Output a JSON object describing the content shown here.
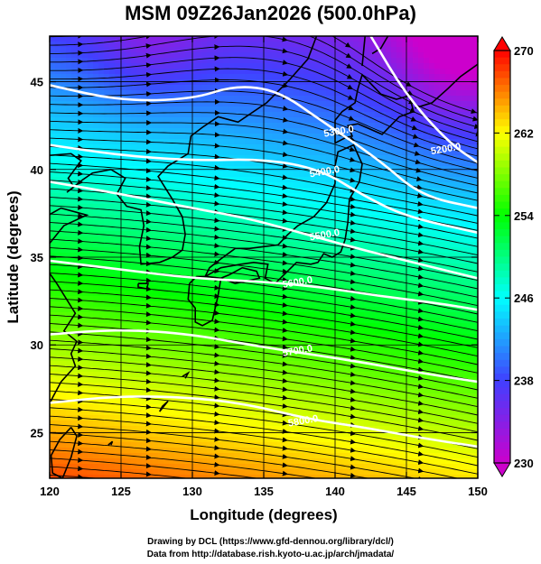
{
  "title": "MSM 09Z26Jan2026 (500.0hPa)",
  "credits": {
    "line1": "Drawing by DCL (https://www.gfd-dennou.org/library/dcl/)",
    "line2": "Data from http://database.rish.kyoto-u.ac.jp/arch/jmadata/"
  },
  "map": {
    "xlabel": "Longitude (degrees)",
    "ylabel": "Latitude  (degrees)",
    "xlim": [
      120,
      150
    ],
    "ylim": [
      22.4,
      47.6
    ],
    "xticks": [
      120,
      125,
      130,
      135,
      140,
      145,
      150
    ],
    "yticks": [
      25,
      30,
      35,
      40,
      45
    ],
    "xtick_labels": [
      "120",
      "125",
      "130",
      "135",
      "140",
      "145",
      "150"
    ],
    "ytick_labels": [
      "25",
      "30",
      "35",
      "40",
      "45"
    ],
    "gridlines": true,
    "colorbar": {
      "min": 230,
      "max": 270,
      "ticks": [
        230,
        238,
        246,
        254,
        262,
        270
      ],
      "tick_labels": [
        "230",
        "238",
        "246",
        "254",
        "262",
        "270"
      ],
      "colors": [
        "#cc00cc",
        "#4040ff",
        "#00ffff",
        "#00ff00",
        "#ffff00",
        "#ff0000"
      ]
    },
    "contours": [
      {
        "label": "5200.0",
        "points": [
          [
            142.5,
            47.6
          ],
          [
            145,
            44.2
          ],
          [
            148,
            41.5
          ],
          [
            150,
            40.4
          ]
        ],
        "label_at": [
          147.8,
          41.0
        ]
      },
      {
        "label": "5300.0",
        "points": [
          [
            120,
            44.8
          ],
          [
            125,
            43.9
          ],
          [
            130,
            44.0
          ],
          [
            133,
            44.8
          ],
          [
            136,
            44.5
          ],
          [
            139,
            42.8
          ],
          [
            143,
            40.6
          ],
          [
            146,
            38.5
          ],
          [
            150,
            37.8
          ]
        ],
        "label_at": [
          140.3,
          42.0
        ]
      },
      {
        "label": "5400.0",
        "points": [
          [
            120,
            41.4
          ],
          [
            125,
            40.8
          ],
          [
            130,
            40.5
          ],
          [
            135,
            40.6
          ],
          [
            139,
            40.0
          ],
          [
            142,
            38.5
          ],
          [
            145,
            37.3
          ],
          [
            150,
            36.4
          ]
        ],
        "label_at": [
          139.3,
          39.7
        ]
      },
      {
        "label": "5500.0",
        "points": [
          [
            120,
            39.3
          ],
          [
            125,
            38.6
          ],
          [
            130,
            37.8
          ],
          [
            134,
            37.2
          ],
          [
            138,
            36.3
          ],
          [
            142,
            35.4
          ],
          [
            146,
            34.6
          ],
          [
            150,
            33.8
          ]
        ],
        "label_at": [
          139.3,
          36.1
        ]
      },
      {
        "label": "5600.0",
        "points": [
          [
            120,
            34.8
          ],
          [
            125,
            34.3
          ],
          [
            130,
            33.8
          ],
          [
            135,
            33.6
          ],
          [
            139,
            33.3
          ],
          [
            143,
            32.8
          ],
          [
            147,
            32.4
          ],
          [
            150,
            32.0
          ]
        ],
        "label_at": [
          137.4,
          33.4
        ]
      },
      {
        "label": "5700.0",
        "points": [
          [
            120,
            30.6
          ],
          [
            125,
            30.9
          ],
          [
            130,
            30.6
          ],
          [
            134,
            30.0
          ],
          [
            138,
            29.5
          ],
          [
            142,
            29.0
          ],
          [
            146,
            28.4
          ],
          [
            150,
            27.9
          ]
        ],
        "label_at": [
          137.4,
          29.5
        ]
      },
      {
        "label": "5800.0",
        "points": [
          [
            120,
            26.7
          ],
          [
            125,
            27.1
          ],
          [
            130,
            27.0
          ],
          [
            134,
            26.6
          ],
          [
            138,
            25.8
          ],
          [
            142,
            25.3
          ],
          [
            146,
            24.7
          ],
          [
            150,
            24.2
          ]
        ],
        "label_at": [
          137.8,
          25.5
        ]
      }
    ]
  }
}
